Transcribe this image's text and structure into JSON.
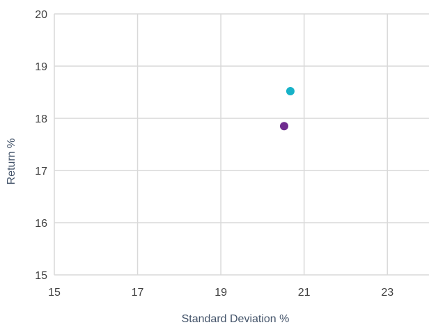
{
  "chart_data": {
    "type": "scatter",
    "xlabel": "Standard Deviation %",
    "ylabel": "Return %",
    "xlim": [
      15,
      24
    ],
    "ylim": [
      15,
      20
    ],
    "x_ticks": [
      15,
      17,
      19,
      21,
      23
    ],
    "y_ticks": [
      15,
      16,
      17,
      18,
      19,
      20
    ],
    "grid": true,
    "series": [
      {
        "color": "#17b2c8",
        "points": [
          {
            "x": 20.67,
            "y": 18.52
          }
        ]
      },
      {
        "color": "#6f2c8f",
        "points": [
          {
            "x": 20.52,
            "y": 17.85
          }
        ]
      }
    ]
  }
}
